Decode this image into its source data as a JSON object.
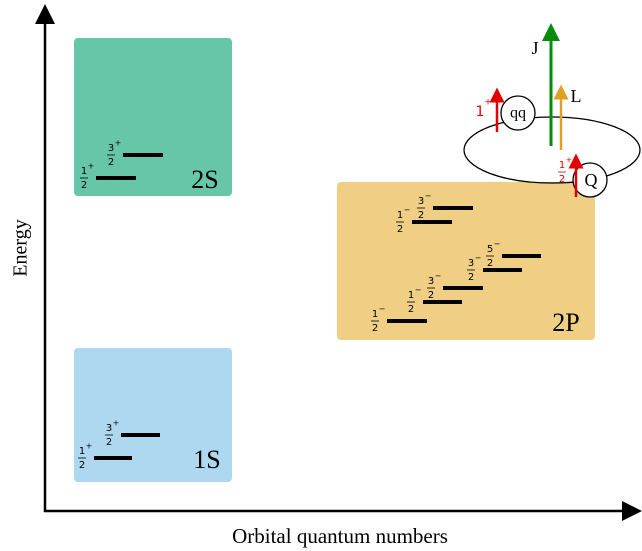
{
  "axes": {
    "y_label": "Energy",
    "x_label": "Orbital quantum numbers"
  },
  "states": [
    {
      "label": "2S",
      "levels": [
        {
          "num": "1",
          "den": "2",
          "parity": "+"
        },
        {
          "num": "3",
          "den": "2",
          "parity": "+"
        }
      ]
    },
    {
      "label": "1S",
      "levels": [
        {
          "num": "1",
          "den": "2",
          "parity": "+"
        },
        {
          "num": "3",
          "den": "2",
          "parity": "+"
        }
      ]
    },
    {
      "label": "2P",
      "levels": [
        {
          "num": "1",
          "den": "2",
          "parity": "−"
        },
        {
          "num": "3",
          "den": "2",
          "parity": "−"
        },
        {
          "num": "1",
          "den": "2",
          "parity": "−"
        },
        {
          "num": "1",
          "den": "2",
          "parity": "−"
        },
        {
          "num": "3",
          "den": "2",
          "parity": "−"
        },
        {
          "num": "3",
          "den": "2",
          "parity": "−"
        },
        {
          "num": "5",
          "den": "2",
          "parity": "−"
        }
      ]
    }
  ],
  "inset": {
    "total": "J",
    "orbital": "L",
    "diquark": "qq",
    "quark": "Q",
    "diquark_spin": {
      "value": "1",
      "parity": "+"
    },
    "quark_spin": {
      "num": "1",
      "den": "2",
      "parity": "+"
    }
  }
}
